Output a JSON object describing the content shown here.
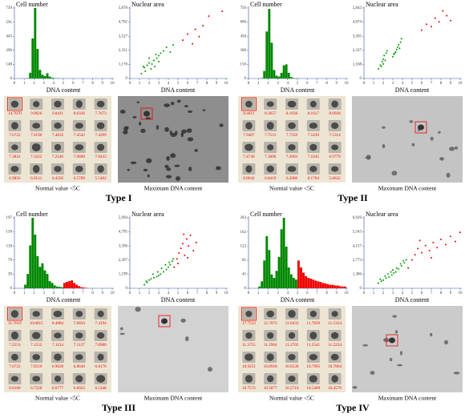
{
  "chart_data": [
    {
      "type": "histogram",
      "ylabel": "Cell number",
      "xlabel": "DNA content",
      "bins": [
        0,
        0.25,
        0.5,
        0.75,
        1,
        1.25,
        1.5,
        1.75,
        2,
        2.25,
        2.5,
        2.75,
        3,
        3.25,
        3.5,
        3.75,
        4,
        4.25,
        4.5,
        4.75,
        5,
        5.25,
        5.5,
        5.75,
        6,
        6.25,
        6.5,
        6.75,
        7,
        7.25,
        7.5,
        7.75,
        8,
        8.25,
        8.5,
        8.75,
        9,
        9.25,
        9.5,
        9.75,
        10
      ],
      "counts": [
        0,
        0,
        0,
        0,
        0,
        4,
        60,
        420,
        739,
        310,
        90,
        40,
        25,
        55,
        20,
        8,
        4,
        2,
        1,
        1,
        0,
        0,
        0,
        0,
        0,
        0,
        0,
        0,
        0,
        0,
        0,
        0,
        0,
        0,
        0,
        0,
        0,
        0,
        0,
        0
      ],
      "colors": [
        "#080",
        "#080",
        "#080",
        "#080",
        "#080",
        "#080",
        "#080",
        "#080",
        "#080",
        "#080",
        "#080",
        "#080",
        "#080",
        "#080",
        "#080",
        "#080",
        "#080",
        "#080",
        "#080",
        "#080",
        "#080",
        "#080",
        "#080",
        "#080",
        "#080",
        "#080",
        "#080",
        "#080",
        "#080",
        "#080",
        "#080",
        "#080",
        "#080",
        "#080",
        "#080",
        "#080",
        "#080",
        "#080",
        "#080",
        "#080"
      ],
      "xlim": [
        0,
        10
      ],
      "xticks": [
        0,
        1,
        2,
        3,
        4,
        5,
        6,
        7,
        8,
        9,
        10
      ],
      "ylim": [
        0,
        739
      ],
      "yticks": [
        0,
        148,
        296,
        443,
        591,
        739
      ]
    },
    {
      "type": "scatter",
      "ylabel": "Nuclear area",
      "xlabel": "DNA content",
      "series": [
        {
          "color": "#090",
          "x": [
            1.2,
            1.5,
            1.8,
            2.0,
            2.2,
            2.5,
            2.8,
            3.0,
            3.2,
            3.5,
            1.6,
            2.3,
            2.6,
            3.8,
            4.2,
            2.0,
            1.4,
            3.0,
            4.5,
            2.7
          ],
          "y": [
            400,
            900,
            1100,
            1300,
            800,
            1500,
            1700,
            1900,
            2100,
            2300,
            600,
            1200,
            1000,
            2600,
            2200,
            1700,
            1000,
            1400,
            2800,
            2000
          ]
        },
        {
          "color": "#e00",
          "x": [
            5.5,
            6.0,
            6.8,
            7.2,
            7.6,
            8.2,
            9.6,
            6.5
          ],
          "y": [
            3200,
            3700,
            4100,
            3500,
            4400,
            5200,
            5600,
            2900
          ]
        }
      ],
      "xlim": [
        0,
        10
      ],
      "xticks": [
        0,
        1,
        2,
        3,
        4,
        5,
        6,
        7,
        8,
        9,
        10
      ],
      "ylim": [
        0,
        5878
      ],
      "yticks": [
        0,
        {
          "value": 1176,
          "label": "1,176"
        },
        {
          "value": 2351,
          "label": "2,351"
        },
        {
          "value": 3527,
          "label": "3,527"
        },
        {
          "value": 4702,
          "label": "4,702"
        },
        {
          "value": 5878,
          "label": "5,878"
        }
      ]
    },
    {
      "type": "histogram",
      "ylabel": "Cell number",
      "xlabel": "DNA content",
      "bins": [
        0,
        0.25,
        0.5,
        0.75,
        1,
        1.25,
        1.5,
        1.75,
        2,
        2.25,
        2.5,
        2.75,
        3,
        3.25,
        3.5,
        3.75,
        4,
        4.25,
        4.5,
        4.75,
        5,
        5.25,
        5.5,
        5.75,
        6,
        6.25,
        6.5,
        6.75,
        7,
        7.25,
        7.5,
        7.75,
        8,
        8.25,
        8.5,
        8.75,
        9,
        9.25,
        9.5,
        9.75,
        10
      ],
      "counts": [
        0,
        0,
        0,
        0,
        0,
        5,
        80,
        500,
        740,
        380,
        90,
        30,
        20,
        60,
        140,
        150,
        60,
        15,
        5,
        2,
        1,
        0,
        0,
        0,
        0,
        0,
        0,
        0,
        0,
        0,
        0,
        0,
        0,
        0,
        0,
        0,
        0,
        0,
        0,
        0
      ],
      "colors": [
        "#080",
        "#080",
        "#080",
        "#080",
        "#080",
        "#080",
        "#080",
        "#080",
        "#080",
        "#080",
        "#080",
        "#080",
        "#080",
        "#080",
        "#080",
        "#080",
        "#080",
        "#080",
        "#080",
        "#080",
        "#080",
        "#080",
        "#080",
        "#080",
        "#080",
        "#080",
        "#080",
        "#080",
        "#080",
        "#080",
        "#080",
        "#080",
        "#080",
        "#080",
        "#080",
        "#080",
        "#080",
        "#080",
        "#080",
        "#080"
      ],
      "xlim": [
        0,
        10
      ],
      "xticks": [
        0,
        1,
        2,
        3,
        4,
        5,
        6,
        7,
        8,
        9,
        10
      ],
      "ylim": [
        0,
        750
      ],
      "yticks": [
        0,
        150,
        300,
        450,
        600,
        750
      ]
    },
    {
      "type": "scatter",
      "ylabel": "Nuclear area",
      "xlabel": "DNA content",
      "series": [
        {
          "color": "#090",
          "x": [
            1.5,
            1.7,
            1.9,
            2.0,
            2.1,
            2.3,
            2.4,
            1.8,
            2.2,
            2.0,
            3.0,
            3.2,
            3.4,
            3.5,
            3.6,
            3.8,
            3.9,
            3.3,
            3.7,
            3.1
          ],
          "y": [
            800,
            1100,
            1400,
            1600,
            1900,
            2100,
            2300,
            1000,
            1500,
            1200,
            1800,
            2100,
            2400,
            2600,
            2800,
            3000,
            3300,
            2200,
            2500,
            2000
          ]
        },
        {
          "color": "#e00",
          "x": [
            6.0,
            6.5,
            7.0,
            7.4,
            7.8,
            8.2,
            8.6,
            9.0
          ],
          "y": [
            4000,
            4500,
            4300,
            5000,
            4700,
            5600,
            5200,
            4800
          ]
        }
      ],
      "xlim": [
        0,
        10
      ],
      "xticks": [
        0,
        1,
        2,
        3,
        4,
        5,
        6,
        7,
        8,
        9,
        10
      ],
      "ylim": [
        0,
        5842
      ],
      "yticks": [
        0,
        {
          "value": 1168,
          "label": "1,168"
        },
        {
          "value": 2337,
          "label": "2,337"
        },
        {
          "value": 3505,
          "label": "3,505"
        },
        {
          "value": 4674,
          "label": "4,674"
        },
        {
          "value": 5842,
          "label": "5,842"
        }
      ]
    },
    {
      "type": "histogram",
      "ylabel": "Cell number",
      "xlabel": "DNA content",
      "bins": [
        0,
        0.25,
        0.5,
        0.75,
        1,
        1.25,
        1.5,
        1.75,
        2,
        2.25,
        2.5,
        2.75,
        3,
        3.25,
        3.5,
        3.75,
        4,
        4.25,
        4.5,
        4.75,
        5,
        5.25,
        5.5,
        5.75,
        6,
        6.25,
        6.5,
        6.75,
        7,
        7.25,
        7.5,
        7.75,
        8,
        8.25,
        8.5,
        8.75,
        9,
        9.25,
        9.5,
        9.75,
        10
      ],
      "counts": [
        0,
        0,
        0,
        0,
        10,
        40,
        120,
        197,
        150,
        90,
        60,
        70,
        50,
        40,
        20,
        15,
        8,
        5,
        4,
        3,
        15,
        18,
        20,
        22,
        15,
        10,
        6,
        3,
        2,
        1,
        0,
        0,
        0,
        0,
        0,
        0,
        0,
        0,
        0,
        0
      ],
      "colors": [
        "#080",
        "#080",
        "#080",
        "#080",
        "#080",
        "#080",
        "#080",
        "#080",
        "#080",
        "#080",
        "#080",
        "#080",
        "#080",
        "#080",
        "#080",
        "#080",
        "#080",
        "#080",
        "#080",
        "#080",
        "#e00",
        "#e00",
        "#e00",
        "#e00",
        "#e00",
        "#e00",
        "#e00",
        "#e00",
        "#e00",
        "#e00",
        "#e00",
        "#e00",
        "#e00",
        "#e00",
        "#e00",
        "#e00",
        "#e00",
        "#e00",
        "#e00",
        "#e00"
      ],
      "xlim": [
        0,
        10
      ],
      "xticks": [
        0,
        1,
        2,
        3,
        4,
        5,
        6,
        7,
        8,
        9,
        10
      ],
      "ylim": [
        0,
        197
      ],
      "yticks": [
        0,
        39,
        79,
        118,
        158,
        197
      ]
    },
    {
      "type": "scatter",
      "ylabel": "Nuclear area",
      "xlabel": "DNA content",
      "series": [
        {
          "color": "#090",
          "x": [
            1.5,
            1.8,
            2.0,
            2.2,
            2.5,
            2.8,
            3.0,
            3.2,
            3.5,
            3.8,
            4.0,
            4.2,
            4.4,
            1.7,
            2.4,
            2.9,
            3.3,
            3.7,
            4.1,
            4.5
          ],
          "y": [
            300,
            500,
            700,
            800,
            900,
            1000,
            1100,
            1200,
            1400,
            1600,
            1800,
            2000,
            2300,
            600,
            1200,
            1400,
            1700,
            2000,
            2200,
            2500
          ]
        },
        {
          "color": "#e00",
          "x": [
            4.6,
            4.9,
            5.1,
            5.3,
            5.5,
            5.7,
            5.9,
            6.1,
            6.3,
            6.6,
            6.9,
            5.0,
            5.6,
            6.0
          ],
          "y": [
            1800,
            2500,
            3000,
            3400,
            3800,
            2800,
            4200,
            3600,
            4500,
            3200,
            3900,
            2100,
            4600,
            2600
          ]
        }
      ],
      "xlim": [
        0,
        10
      ],
      "xticks": [
        0,
        1,
        2,
        3,
        4,
        5,
        6,
        7,
        8,
        9,
        10
      ],
      "ylim": [
        0,
        5994
      ],
      "yticks": [
        0,
        {
          "value": 1199,
          "label": "1,199"
        },
        {
          "value": 2397,
          "label": "2,397"
        },
        {
          "value": 3596,
          "label": "3,596"
        },
        {
          "value": 4795,
          "label": "4,795"
        },
        {
          "value": 5994,
          "label": "5,994"
        }
      ]
    },
    {
      "type": "histogram",
      "ylabel": "Cell number",
      "xlabel": "DNA content",
      "bins": [
        0,
        0.25,
        0.5,
        0.75,
        1,
        1.25,
        1.5,
        1.75,
        2,
        2.25,
        2.5,
        2.75,
        3,
        3.25,
        3.5,
        3.75,
        4,
        4.25,
        4.5,
        4.75,
        5,
        5.25,
        5.5,
        5.75,
        6,
        6.25,
        6.5,
        6.75,
        7,
        7.25,
        7.5,
        7.75,
        8,
        8.25,
        8.5,
        8.75,
        9,
        9.25,
        9.5,
        9.75,
        10
      ],
      "counts": [
        0,
        0,
        0,
        0,
        5,
        20,
        80,
        150,
        110,
        40,
        30,
        50,
        90,
        170,
        203,
        120,
        60,
        40,
        30,
        25,
        80,
        60,
        45,
        35,
        30,
        28,
        25,
        22,
        20,
        18,
        15,
        14,
        12,
        10,
        10,
        8,
        8,
        6,
        5,
        5
      ],
      "colors": [
        "#080",
        "#080",
        "#080",
        "#080",
        "#080",
        "#080",
        "#080",
        "#080",
        "#080",
        "#080",
        "#080",
        "#080",
        "#080",
        "#080",
        "#080",
        "#080",
        "#080",
        "#080",
        "#080",
        "#080",
        "#e00",
        "#e00",
        "#e00",
        "#e00",
        "#e00",
        "#e00",
        "#e00",
        "#e00",
        "#e00",
        "#e00",
        "#e00",
        "#e00",
        "#e00",
        "#e00",
        "#e00",
        "#e00",
        "#e00",
        "#e00",
        "#e00",
        "#e00"
      ],
      "xlim": [
        0,
        10
      ],
      "xticks": [
        0,
        1,
        2,
        3,
        4,
        5,
        6,
        7,
        8,
        9,
        10
      ],
      "ylim": [
        0,
        203
      ],
      "yticks": [
        0,
        41,
        81,
        122,
        162,
        203
      ]
    },
    {
      "type": "scatter",
      "ylabel": "Nuclear area",
      "xlabel": "DNA content",
      "series": [
        {
          "color": "#090",
          "x": [
            1.5,
            1.8,
            2.0,
            2.3,
            2.6,
            2.9,
            3.1,
            3.3,
            3.6,
            3.9,
            4.2,
            4.4,
            1.7,
            2.2,
            2.8,
            3.4,
            3.8,
            4.1,
            2.5,
            3.0
          ],
          "y": [
            500,
            700,
            800,
            1000,
            1100,
            1300,
            1500,
            1600,
            1900,
            2200,
            2500,
            2800,
            900,
            1200,
            1600,
            2000,
            2400,
            2700,
            1400,
            1800
          ]
        },
        {
          "color": "#e00",
          "x": [
            4.6,
            5.0,
            5.3,
            5.6,
            6.0,
            6.4,
            6.8,
            7.2,
            7.6,
            8.0,
            8.5,
            9.0,
            9.5,
            10.0,
            5.8,
            7.0
          ],
          "y": [
            2000,
            2800,
            3300,
            3900,
            3500,
            4200,
            3700,
            4500,
            4000,
            4800,
            4300,
            5100,
            4600,
            5500,
            4700,
            3000
          ]
        }
      ],
      "xlim": [
        0,
        10
      ],
      "xticks": [
        0,
        1,
        2,
        3,
        4,
        5,
        6,
        7,
        8,
        9,
        10
      ],
      "ylim": [
        0,
        6929
      ],
      "yticks": [
        0,
        {
          "value": 1386,
          "label": "1,386"
        },
        {
          "value": 2773,
          "label": "2,773"
        },
        {
          "value": 4157,
          "label": "4,157"
        },
        {
          "value": 5543,
          "label": "5,543"
        },
        {
          "value": 6929,
          "label": "6,929"
        }
      ]
    }
  ],
  "panels": [
    {
      "type_label": "Type I",
      "gallery_caption": "Normal value <5C",
      "image_caption": "Maximam DNA content",
      "gallery_values": [
        "14.7670",
        "9.9926",
        "9.8411",
        "8.0326",
        "7.7673",
        "7.6722",
        "7.6190",
        "7.4832",
        "7.4542",
        "7.4299",
        "7.3841",
        "7.3322",
        "7.2546",
        "7.0860",
        "7.0433",
        "6.9856",
        "6.9121",
        "6.4592",
        "6.5789",
        "5.5462"
      ]
    },
    {
      "type_label": "Type II",
      "gallery_caption": "Normal value <5C",
      "image_caption": "Maximam DNA content",
      "gallery_values": [
        "8.4611",
        "8.3657",
        "8.1938",
        "8.1617",
        "8.0928",
        "7.9407",
        "7.7531",
        "7.7359",
        "7.5439",
        "7.5314",
        "7.4740",
        "7.3896",
        "7.2063",
        "7.1645",
        "6.9779",
        "6.8642",
        "6.8419",
        "6.3060",
        "6.1704",
        "5.8632"
      ]
    },
    {
      "type_label": "Type III",
      "gallery_caption": "Normal value <5C",
      "image_caption": "Maximam DNA content",
      "gallery_values": [
        "11.7619",
        "10.8015",
        "8.4884",
        "7.6850",
        "7.4194",
        "7.2553",
        "7.1552",
        "7.1154",
        "7.1127",
        "7.0980",
        "7.0722",
        "7.0210",
        "6.9028",
        "6.8646",
        "6.8176",
        "6.8108",
        "6.7528",
        "6.6777",
        "6.6022",
        "6.5348"
      ]
    },
    {
      "type_label": "Type IV",
      "gallery_caption": "Normal value <5C",
      "image_caption": "Maximam DNA content",
      "gallery_values": [
        "17.7523",
        "12.7073",
        "12.0432",
        "11.7839",
        "11.5324",
        "11.3755",
        "11.2964",
        "11.2705",
        "11.2541",
        "11.2224",
        "10.9251",
        "10.8918",
        "10.8536",
        "10.7995",
        "10.7864",
        "10.7572",
        "10.5877",
        "10.5710",
        "10.5409",
        "10.4579"
      ]
    }
  ]
}
